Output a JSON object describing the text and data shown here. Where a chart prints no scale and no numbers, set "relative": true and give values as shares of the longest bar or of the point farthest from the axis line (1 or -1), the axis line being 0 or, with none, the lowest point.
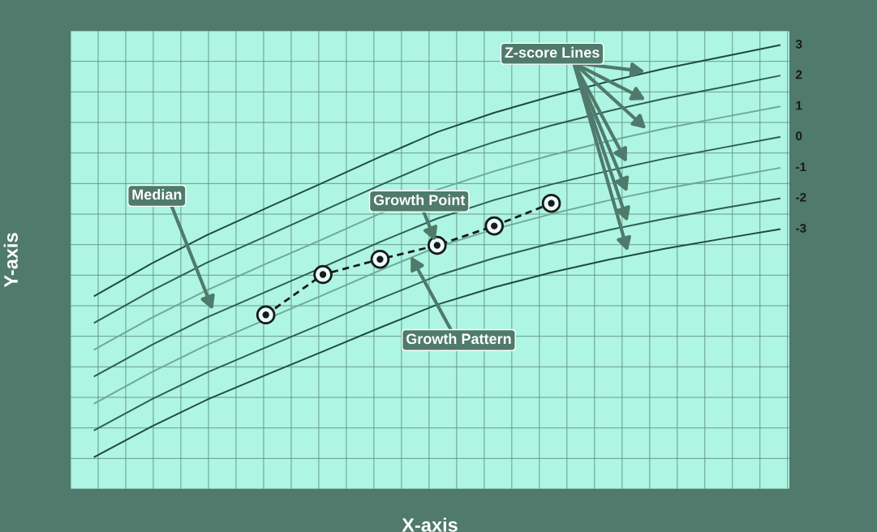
{
  "chart_data": {
    "type": "line",
    "relative": true,
    "xlabel": "X-axis",
    "ylabel": "Y-axis",
    "grid": true,
    "legend": false,
    "categories": [
      null,
      null,
      null,
      null,
      null,
      null,
      null,
      null,
      null,
      null,
      null,
      null,
      null
    ],
    "series": [
      {
        "name": "3",
        "color": "#1f4a40",
        "values": [
          0.391,
          0.47,
          0.541,
          0.604,
          0.666,
          0.729,
          0.789,
          0.836,
          0.876,
          0.912,
          0.944,
          0.972,
          1
        ]
      },
      {
        "name": "2",
        "color": "#2e5d52",
        "values": [
          0.326,
          0.404,
          0.474,
          0.536,
          0.598,
          0.66,
          0.719,
          0.765,
          0.805,
          0.84,
          0.871,
          0.898,
          0.926
        ]
      },
      {
        "name": "1",
        "color": "#6fa89b",
        "values": [
          0.261,
          0.338,
          0.407,
          0.469,
          0.529,
          0.591,
          0.649,
          0.694,
          0.733,
          0.767,
          0.798,
          0.825,
          0.851
        ]
      },
      {
        "name": "0",
        "color": "#2e5d52",
        "values": [
          0.196,
          0.272,
          0.341,
          0.401,
          0.461,
          0.522,
          0.579,
          0.624,
          0.662,
          0.695,
          0.725,
          0.751,
          0.777
        ]
      },
      {
        "name": "-1",
        "color": "#6fa89b",
        "values": [
          0.13,
          0.206,
          0.274,
          0.334,
          0.393,
          0.453,
          0.51,
          0.553,
          0.59,
          0.623,
          0.652,
          0.677,
          0.702
        ]
      },
      {
        "name": "-2",
        "color": "#2e5d52",
        "values": [
          0.065,
          0.14,
          0.207,
          0.266,
          0.324,
          0.384,
          0.44,
          0.483,
          0.519,
          0.551,
          0.579,
          0.604,
          0.628
        ]
      },
      {
        "name": "-3",
        "color": "#1f4a40",
        "values": [
          0,
          0.074,
          0.141,
          0.199,
          0.256,
          0.314,
          0.37,
          0.412,
          0.448,
          0.479,
          0.506,
          0.53,
          0.553
        ]
      },
      {
        "color": "#1a1a1a",
        "marker": "circle",
        "line_style": "dashed",
        "values": [
          null,
          null,
          null,
          0.345,
          0.443,
          0.48,
          0.514,
          0.561,
          0.616,
          null,
          null,
          null,
          null
        ]
      }
    ],
    "annotations": [
      "Z-score Lines",
      "Median",
      "Growth Point",
      "Growth Pattern"
    ]
  }
}
